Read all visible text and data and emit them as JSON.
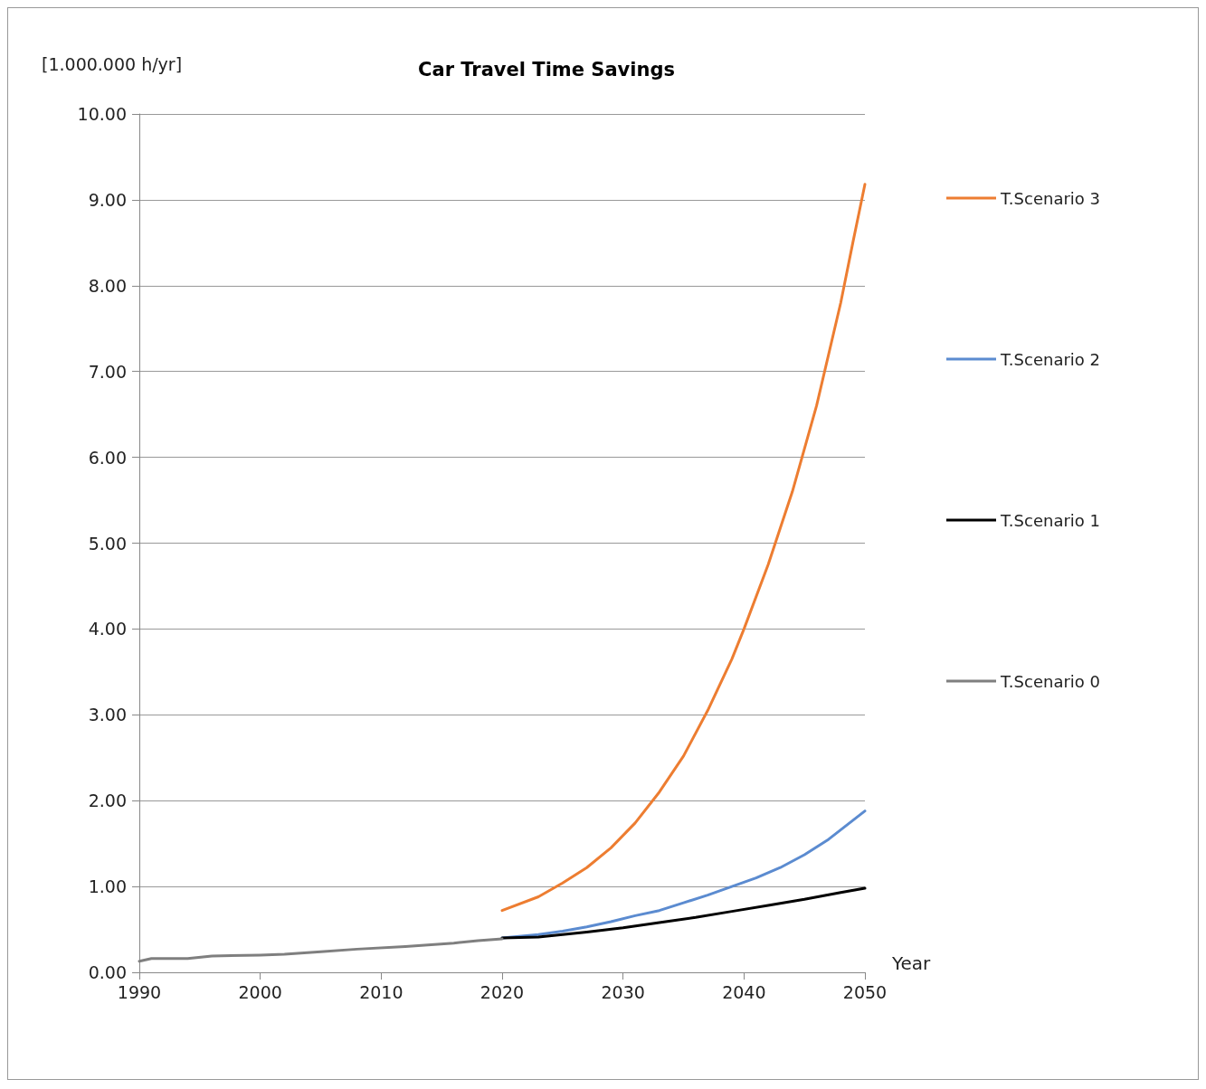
{
  "chart_data": {
    "type": "line",
    "title": "Car Travel Time Savings",
    "xlabel": "Year",
    "ylabel": "[1.000.000 h/yr]",
    "xlim": [
      1990,
      2050
    ],
    "xticks": [
      1990,
      2000,
      2010,
      2020,
      2030,
      2040,
      2050
    ],
    "ylim": [
      0,
      10
    ],
    "yticks": [
      {
        "value": 0,
        "label": "0.00"
      },
      {
        "value": 1,
        "label": "1.00"
      },
      {
        "value": 2,
        "label": "2.00"
      },
      {
        "value": 3,
        "label": "3.00"
      },
      {
        "value": 4,
        "label": "4.00"
      },
      {
        "value": 5,
        "label": "5.00"
      },
      {
        "value": 6,
        "label": "6.00"
      },
      {
        "value": 7,
        "label": "7.00"
      },
      {
        "value": 8,
        "label": "8.00"
      },
      {
        "value": 9,
        "label": "9.00"
      },
      {
        "value": 10,
        "label": "10.00"
      }
    ],
    "grid": "y",
    "legend": "right",
    "marker": "none",
    "line_style": "solid",
    "series": [
      {
        "name": "T.Scenario 3",
        "color": "#ed7d31",
        "x": [
          2020,
          2023,
          2025,
          2027,
          2029,
          2031,
          2033,
          2035,
          2037,
          2039,
          2040,
          2042,
          2044,
          2046,
          2048,
          2049,
          2050
        ],
        "values": [
          0.72,
          0.88,
          1.04,
          1.22,
          1.45,
          1.74,
          2.1,
          2.52,
          3.05,
          3.65,
          4.0,
          4.75,
          5.6,
          6.6,
          7.8,
          8.5,
          9.18
        ]
      },
      {
        "name": "T.Scenario 2",
        "color": "#5b8bd0",
        "x": [
          2020,
          2023,
          2025,
          2027,
          2029,
          2031,
          2033,
          2035,
          2037,
          2039,
          2041,
          2043,
          2045,
          2047,
          2050
        ],
        "values": [
          0.4,
          0.44,
          0.48,
          0.53,
          0.59,
          0.66,
          0.72,
          0.81,
          0.9,
          1.0,
          1.1,
          1.22,
          1.37,
          1.55,
          1.88
        ]
      },
      {
        "name": "T.Scenario 1",
        "color": "#000000",
        "x": [
          2020,
          2023,
          2025,
          2027,
          2030,
          2033,
          2036,
          2039,
          2042,
          2045,
          2048,
          2050
        ],
        "values": [
          0.4,
          0.41,
          0.44,
          0.47,
          0.52,
          0.58,
          0.64,
          0.71,
          0.78,
          0.85,
          0.93,
          0.98
        ]
      },
      {
        "name": "T.Scenario 0",
        "color": "#7f7f7f",
        "x": [
          1990,
          1991,
          1994,
          1996,
          2000,
          2002,
          2005,
          2008,
          2012,
          2016,
          2018,
          2020
        ],
        "values": [
          0.13,
          0.16,
          0.16,
          0.19,
          0.2,
          0.21,
          0.24,
          0.27,
          0.3,
          0.34,
          0.37,
          0.39
        ]
      }
    ]
  }
}
